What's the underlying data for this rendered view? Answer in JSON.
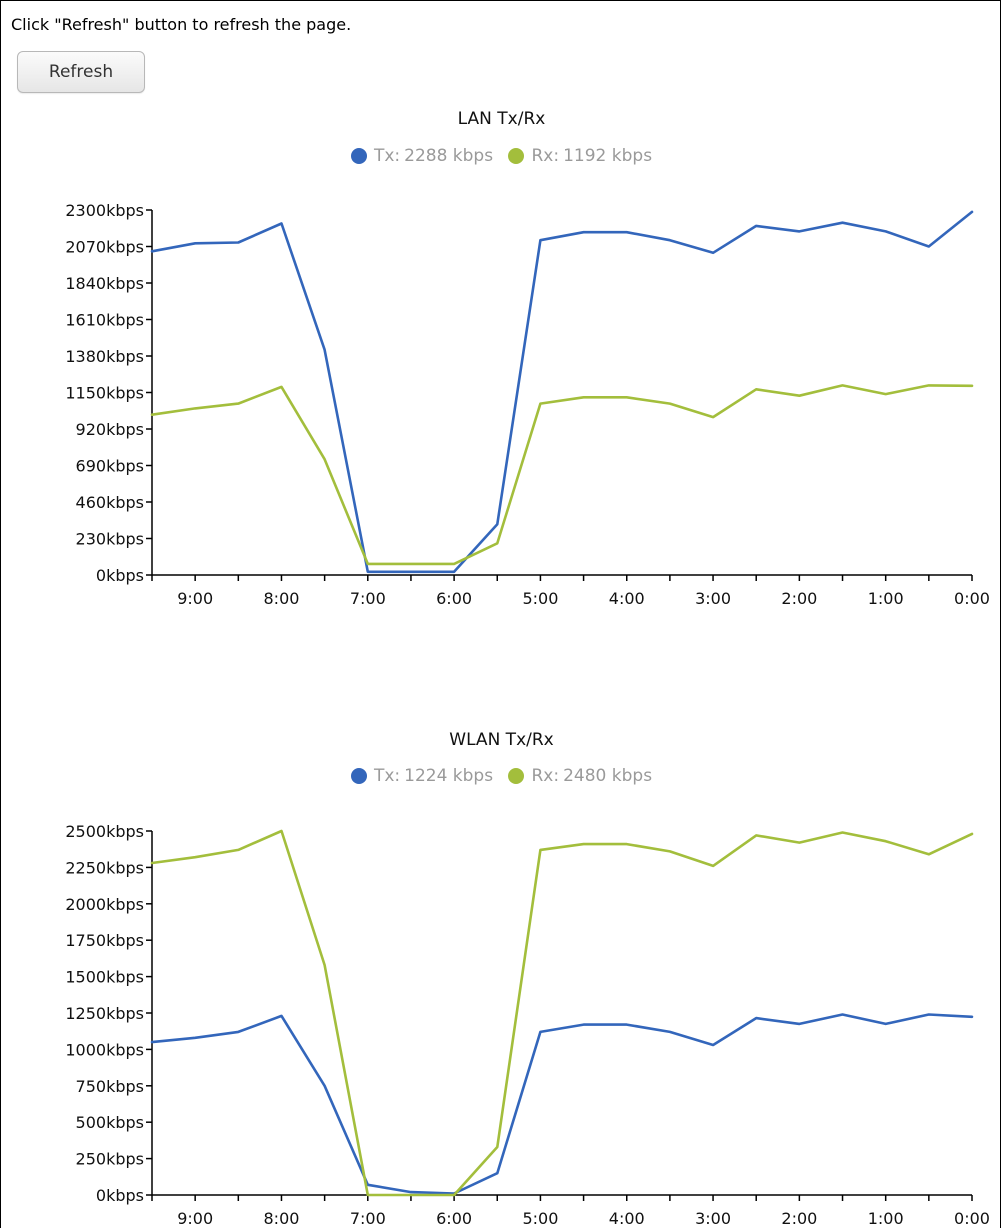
{
  "page": {
    "instruction": "Click \"Refresh\" button to refresh the page.",
    "refresh_label": "Refresh"
  },
  "colors": {
    "tx": "#3366bb",
    "rx": "#a3be3c",
    "axis": "#000000"
  },
  "charts": [
    {
      "title": "LAN Tx/Rx",
      "legend": [
        {
          "label": "Tx:",
          "value": "2288 kbps",
          "color": "#3366bb"
        },
        {
          "label": "Rx:",
          "value": "1192 kbps",
          "color": "#a3be3c"
        }
      ]
    },
    {
      "title": "WLAN Tx/Rx",
      "legend": [
        {
          "label": "Tx:",
          "value": "1224 kbps",
          "color": "#3366bb"
        },
        {
          "label": "Rx:",
          "value": "2480 kbps",
          "color": "#a3be3c"
        }
      ]
    }
  ],
  "chart_data": [
    {
      "type": "line",
      "title": "LAN Tx/Rx",
      "x_tick_labels": [
        "9:00",
        "8:00",
        "7:00",
        "6:00",
        "5:00",
        "4:00",
        "3:00",
        "2:00",
        "1:00",
        "0:00"
      ],
      "y_tick_labels": [
        "0kbps",
        "230kbps",
        "460kbps",
        "690kbps",
        "920kbps",
        "1150kbps",
        "1380kbps",
        "1610kbps",
        "1840kbps",
        "2070kbps",
        "2300kbps"
      ],
      "ylim": [
        0,
        2300
      ],
      "x_range_hours": [
        9.5,
        0
      ],
      "series": [
        {
          "name": "Tx",
          "color": "#3366bb",
          "x": [
            9.5,
            9,
            8.5,
            8,
            7.5,
            7,
            6.5,
            6,
            5.5,
            5,
            4.5,
            4,
            3.5,
            3,
            2.5,
            2,
            1.5,
            1,
            0.5,
            0
          ],
          "values": [
            2040,
            2090,
            2095,
            2215,
            1420,
            20,
            20,
            20,
            320,
            2110,
            2160,
            2160,
            2110,
            2030,
            2200,
            2165,
            2220,
            2165,
            2070,
            2288
          ]
        },
        {
          "name": "Rx",
          "color": "#a3be3c",
          "x": [
            9.5,
            9,
            8.5,
            8,
            7.5,
            7,
            6.5,
            6,
            5.5,
            5,
            4.5,
            4,
            3.5,
            3,
            2.5,
            2,
            1.5,
            1,
            0.5,
            0
          ],
          "values": [
            1010,
            1050,
            1080,
            1185,
            730,
            70,
            70,
            70,
            200,
            1080,
            1120,
            1120,
            1080,
            995,
            1170,
            1130,
            1195,
            1140,
            1195,
            1192
          ]
        }
      ]
    },
    {
      "type": "line",
      "title": "WLAN Tx/Rx",
      "x_tick_labels": [
        "9:00",
        "8:00",
        "7:00",
        "6:00",
        "5:00",
        "4:00",
        "3:00",
        "2:00",
        "1:00",
        "0:00"
      ],
      "y_tick_labels": [
        "0kbps",
        "250kbps",
        "500kbps",
        "750kbps",
        "1000kbps",
        "1250kbps",
        "1500kbps",
        "1750kbps",
        "2000kbps",
        "2250kbps",
        "2500kbps"
      ],
      "ylim": [
        0,
        2500
      ],
      "x_range_hours": [
        9.5,
        0
      ],
      "series": [
        {
          "name": "Tx",
          "color": "#3366bb",
          "x": [
            9.5,
            9,
            8.5,
            8,
            7.5,
            7,
            6.5,
            6,
            5.5,
            5,
            4.5,
            4,
            3.5,
            3,
            2.5,
            2,
            1.5,
            1,
            0.5,
            0
          ],
          "values": [
            1050,
            1080,
            1120,
            1230,
            750,
            70,
            20,
            10,
            150,
            1120,
            1170,
            1170,
            1120,
            1030,
            1215,
            1175,
            1240,
            1175,
            1240,
            1224
          ]
        },
        {
          "name": "Rx",
          "color": "#a3be3c",
          "x": [
            9.5,
            9,
            8.5,
            8,
            7.5,
            7,
            6.5,
            6,
            5.5,
            5,
            4.5,
            4,
            3.5,
            3,
            2.5,
            2,
            1.5,
            1,
            0.5,
            0
          ],
          "values": [
            2280,
            2320,
            2370,
            2500,
            1580,
            0,
            0,
            0,
            330,
            2370,
            2410,
            2410,
            2360,
            2260,
            2470,
            2420,
            2490,
            2430,
            2340,
            2480
          ]
        }
      ]
    }
  ]
}
